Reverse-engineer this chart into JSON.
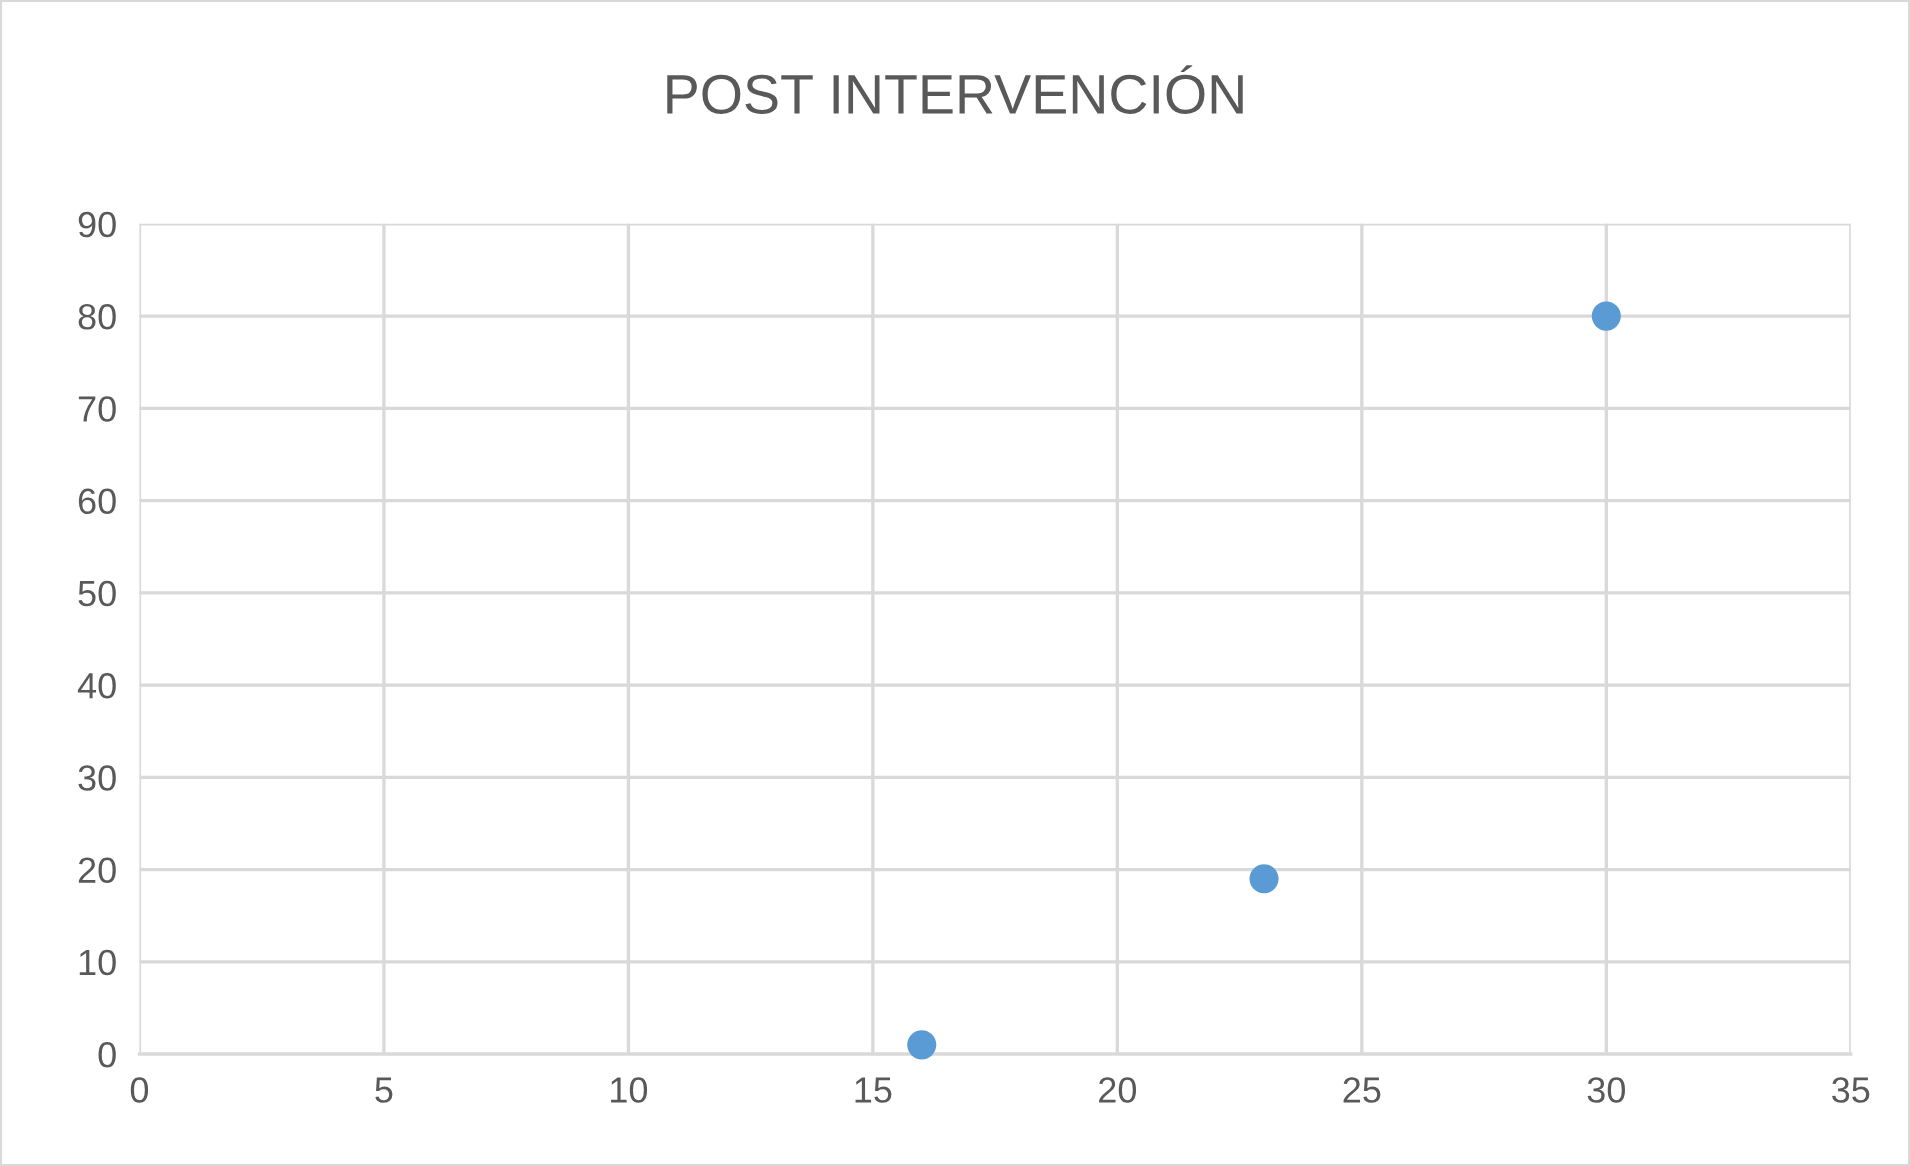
{
  "chart_data": {
    "type": "scatter",
    "title": "POST INTERVENCIÓN",
    "x": [
      16,
      23,
      30
    ],
    "series": [
      {
        "color": "#5b9bd5",
        "values": [
          1,
          19,
          80
        ]
      }
    ],
    "xlim": [
      0,
      35
    ],
    "xticks": [
      0,
      5,
      10,
      15,
      20,
      25,
      30,
      35
    ],
    "ylim": [
      0,
      90
    ],
    "yticks": [
      0,
      10,
      20,
      30,
      40,
      50,
      60,
      70,
      80,
      90
    ],
    "grid": true,
    "marker": "circle"
  }
}
